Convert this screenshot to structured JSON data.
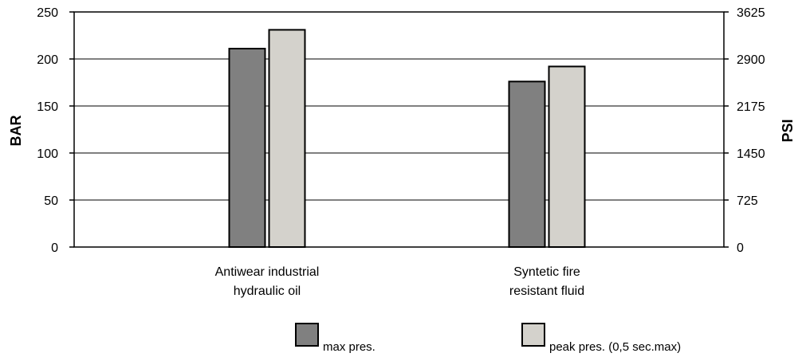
{
  "chart_data": {
    "type": "bar",
    "categories": [
      [
        "Antiwear industrial",
        "hydraulic oil"
      ],
      [
        "Syntetic fire",
        "resistant fluid"
      ]
    ],
    "series": [
      {
        "name": "max pres.",
        "values": [
          211,
          176
        ],
        "color": "#808080"
      },
      {
        "name": "peak pres. (0,5 sec.max)",
        "values": [
          231,
          192
        ],
        "color": "#d4d2cc"
      }
    ],
    "ylabel": "BAR",
    "y2label": "PSI",
    "ylim": [
      0,
      250
    ],
    "yticks": [
      0,
      50,
      100,
      150,
      200,
      250
    ],
    "y2lim": [
      0,
      3625
    ],
    "y2ticks": [
      0,
      725,
      1450,
      2175,
      2900,
      3625
    ],
    "grid": true,
    "legend": "bottom",
    "colors": {
      "axis": "#000000",
      "grid": "#000000",
      "bar_stroke": "#000000"
    }
  }
}
